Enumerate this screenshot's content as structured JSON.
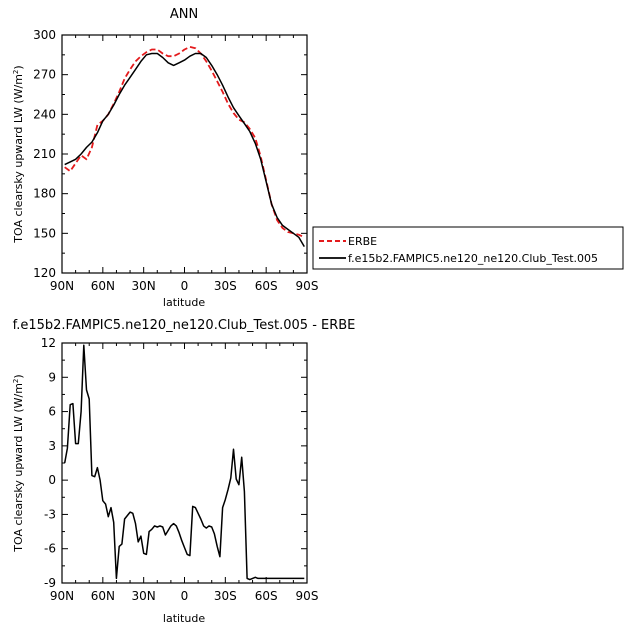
{
  "chart_data": [
    {
      "type": "line",
      "title": "ANN",
      "xlabel": "latitude",
      "ylabel": "TOA clearsky upward LW (W/m²)",
      "ylabel_base": "TOA clearsky upward LW (W/m",
      "ylabel_sup": "2",
      "ylabel_end": ")",
      "xlim": [
        90,
        -90
      ],
      "ylim": [
        120,
        300
      ],
      "x_ticks": [
        90,
        60,
        30,
        0,
        -30,
        -60,
        -90
      ],
      "x_tick_labels": [
        "90N",
        "60N",
        "30N",
        "0",
        "30S",
        "60S",
        "90S"
      ],
      "y_ticks": [
        120,
        150,
        180,
        210,
        240,
        270,
        300
      ],
      "y_tick_labels": [
        "120",
        "150",
        "180",
        "210",
        "240",
        "270",
        "300"
      ],
      "legend": "right",
      "series": [
        {
          "name": "ERBE",
          "color": "#e41a1c",
          "dash": "dashed",
          "x": [
            88,
            84,
            80,
            76,
            72,
            68,
            64,
            60,
            56,
            52,
            48,
            44,
            40,
            36,
            32,
            28,
            24,
            20,
            16,
            12,
            8,
            4,
            0,
            -4,
            -8,
            -12,
            -16,
            -20,
            -24,
            -28,
            -32,
            -36,
            -40,
            -44,
            -48,
            -52,
            -56,
            -60,
            -64,
            -68,
            -72,
            -76,
            -80,
            -84,
            -88
          ],
          "values": [
            200,
            197,
            203,
            209,
            206,
            215,
            232,
            235,
            240,
            248,
            257,
            267,
            274,
            280,
            284,
            287,
            289,
            289,
            286,
            284,
            284,
            286,
            289,
            291,
            290,
            286,
            280,
            273,
            265,
            257,
            248,
            241,
            236,
            234,
            229,
            222,
            208,
            190,
            172,
            160,
            154,
            151,
            150,
            149,
            147
          ]
        },
        {
          "name": "f.e15b2.FAMPIC5.ne120_ne120.Club_Test.005",
          "color": "#000000",
          "dash": "solid",
          "x": [
            88,
            84,
            80,
            76,
            72,
            68,
            64,
            60,
            56,
            52,
            48,
            44,
            40,
            36,
            32,
            28,
            24,
            20,
            16,
            12,
            8,
            4,
            0,
            -4,
            -8,
            -12,
            -16,
            -20,
            -24,
            -28,
            -32,
            -36,
            -40,
            -44,
            -48,
            -52,
            -56,
            -60,
            -64,
            -68,
            -72,
            -76,
            -80,
            -84,
            -88
          ],
          "values": [
            202,
            204,
            206,
            210,
            215,
            219,
            226,
            235,
            240,
            247,
            255,
            262,
            268,
            274,
            280,
            285,
            286,
            286,
            283,
            279,
            277,
            279,
            281,
            284,
            286,
            286,
            283,
            277,
            270,
            262,
            253,
            245,
            239,
            233,
            227,
            218,
            206,
            189,
            172,
            162,
            156,
            153,
            150,
            147,
            140
          ]
        }
      ]
    },
    {
      "type": "line",
      "title": "f.e15b2.FAMPIC5.ne120_ne120.Club_Test.005 - ERBE",
      "xlabel": "latitude",
      "ylabel": "TOA clearsky upward LW (W/m²)",
      "ylabel_base": "TOA clearsky upward LW (W/m",
      "ylabel_sup": "2",
      "ylabel_end": ")",
      "xlim": [
        90,
        -90
      ],
      "ylim": [
        -9,
        12
      ],
      "x_ticks": [
        90,
        60,
        30,
        0,
        -30,
        -60,
        -90
      ],
      "x_tick_labels": [
        "90N",
        "60N",
        "30N",
        "0",
        "30S",
        "60S",
        "90S"
      ],
      "y_ticks": [
        -9,
        -6,
        -3,
        0,
        3,
        6,
        9,
        12
      ],
      "y_tick_labels": [
        "-9",
        "-6",
        "-3",
        "0",
        "3",
        "6",
        "9",
        "12"
      ],
      "series": [
        {
          "color": "#000000",
          "dash": "solid",
          "x": [
            88,
            86,
            84,
            82,
            80,
            78,
            76,
            74,
            72,
            70,
            68,
            66,
            64,
            62,
            60,
            58,
            56,
            54,
            52,
            50,
            48,
            46,
            44,
            42,
            40,
            38,
            36,
            34,
            32,
            30,
            28,
            26,
            24,
            22,
            20,
            18,
            16,
            14,
            12,
            10,
            8,
            6,
            4,
            2,
            0,
            -2,
            -4,
            -6,
            -8,
            -10,
            -12,
            -14,
            -16,
            -18,
            -20,
            -22,
            -24,
            -26,
            -28,
            -30,
            -32,
            -34,
            -36,
            -38,
            -40,
            -42,
            -44,
            -46,
            -48,
            -50,
            -52,
            -54,
            -56,
            -58,
            -60,
            -62,
            -64,
            -66,
            -68,
            -70,
            -72,
            -74,
            -76,
            -78,
            -80,
            -82,
            -84,
            -86,
            -88
          ],
          "values": [
            1.5,
            2.8,
            6.6,
            6.7,
            3.2,
            3.2,
            6.0,
            11.8,
            7.9,
            7.1,
            0.4,
            0.3,
            1.1,
            0.0,
            -1.8,
            -2.1,
            -3.2,
            -2.4,
            -3.7,
            -8.6,
            -5.8,
            -5.6,
            -3.4,
            -3.1,
            -2.8,
            -2.9,
            -3.8,
            -5.4,
            -4.9,
            -6.4,
            -6.5,
            -4.5,
            -4.3,
            -4.0,
            -4.1,
            -4.0,
            -4.1,
            -4.8,
            -4.4,
            -4.0,
            -3.8,
            -4.0,
            -4.6,
            -5.3,
            -5.9,
            -6.5,
            -6.6,
            -2.3,
            -2.4,
            -2.9,
            -3.4,
            -4.0,
            -4.2,
            -4.0,
            -4.1,
            -4.7,
            -5.8,
            -6.7,
            -2.4,
            -1.7,
            -0.8,
            0.2,
            2.7,
            0.1,
            -0.4,
            2.0,
            -1.0,
            -8.6,
            -8.7,
            -8.6,
            -8.5,
            -8.6,
            -8.6,
            -8.6,
            -8.6,
            -8.6,
            -8.6,
            -8.6,
            -8.6,
            -8.6,
            -8.6,
            -8.6,
            -8.6,
            -8.6,
            -8.6,
            -8.6,
            -8.6,
            -8.6,
            -8.6
          ]
        }
      ]
    }
  ]
}
